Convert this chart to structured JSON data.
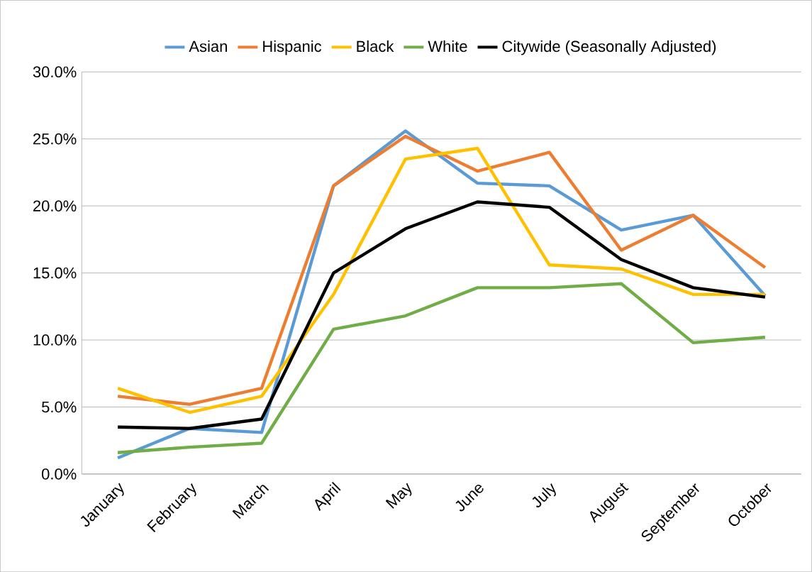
{
  "chart_data": {
    "type": "line",
    "categories": [
      "January",
      "February",
      "March",
      "April",
      "May",
      "June",
      "July",
      "August",
      "September",
      "October"
    ],
    "series": [
      {
        "name": "Asian",
        "color": "#5b9bd5",
        "values": [
          1.2,
          3.4,
          3.1,
          21.5,
          25.6,
          21.7,
          21.5,
          18.2,
          19.3,
          13.3
        ]
      },
      {
        "name": "Hispanic",
        "color": "#ed7d31",
        "values": [
          5.8,
          5.2,
          6.4,
          21.5,
          25.2,
          22.6,
          24.0,
          16.7,
          19.3,
          15.4
        ]
      },
      {
        "name": "Black",
        "color": "#ffc000",
        "values": [
          6.4,
          4.6,
          5.8,
          13.4,
          23.5,
          24.3,
          15.6,
          15.3,
          13.4,
          13.4
        ]
      },
      {
        "name": "White",
        "color": "#70ad47",
        "values": [
          1.6,
          2.0,
          2.3,
          10.8,
          11.8,
          13.9,
          13.9,
          14.2,
          9.8,
          10.2
        ]
      },
      {
        "name": "Citywide (Seasonally Adjusted)",
        "color": "#000000",
        "values": [
          3.5,
          3.4,
          4.1,
          15.0,
          18.3,
          20.3,
          19.9,
          16.0,
          13.9,
          13.2
        ]
      }
    ],
    "ylim": [
      0,
      30
    ],
    "yticks": [
      {
        "value": 0,
        "label": "0.0%"
      },
      {
        "value": 5,
        "label": "5.0%"
      },
      {
        "value": 10,
        "label": "10.0%"
      },
      {
        "value": 15,
        "label": "15.0%"
      },
      {
        "value": 20,
        "label": "20.0%"
      },
      {
        "value": 25,
        "label": "25.0%"
      },
      {
        "value": 30,
        "label": "30.0%"
      }
    ],
    "grid": "y",
    "legend": "top",
    "marker": "none",
    "line_style": "solid"
  }
}
